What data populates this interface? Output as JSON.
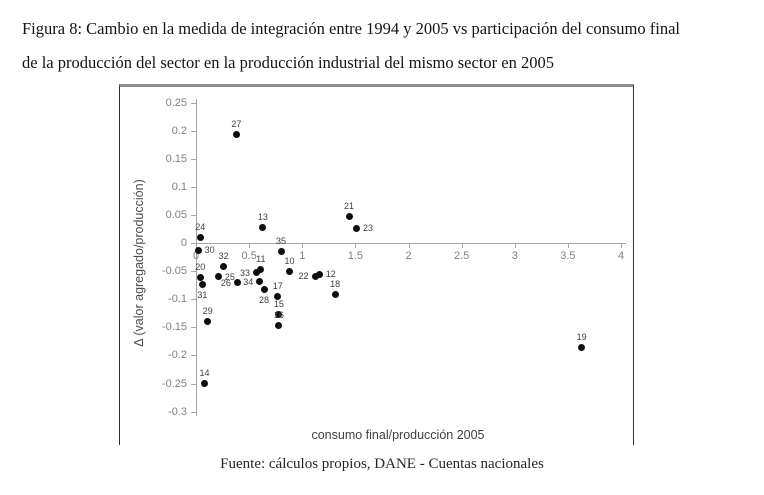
{
  "figure": {
    "caption_line1": "Figura 8: Cambio en la medida de integración entre 1994 y 2005 vs participación del consumo final",
    "caption_line2": "de la producción del sector en la producción industrial del mismo sector en 2005",
    "source": "Fuente: cálculos propios, DANE - Cuentas nacionales"
  },
  "colors": {
    "point": "#0d0d0d",
    "axis": "#a6a6a6",
    "tick_label": "#808080",
    "point_label": "#404040",
    "chart_top_border": "#8c8c8c",
    "chart_side_border": "#2e2e2e"
  },
  "chart_data": {
    "type": "scatter",
    "title": "",
    "xlabel": "consumo final/producción 2005",
    "ylabel": "Δ (valor agregado/producción)",
    "xlim": [
      0,
      4
    ],
    "ylim": [
      -0.3,
      0.25
    ],
    "x_ticks": [
      "0",
      "0.5",
      "1",
      "1.5",
      "2",
      "2.5",
      "3",
      "3.5",
      "4"
    ],
    "y_ticks": [
      "0.25",
      "0.2",
      "0.15",
      "0.1",
      "0.05",
      "0",
      "-0.05",
      "-0.1",
      "-0.15",
      "-0.2",
      "-0.25",
      "-0.3"
    ],
    "grid": false,
    "legend": false,
    "points": [
      {
        "label": "10",
        "x": 0.88,
        "y": -0.05,
        "label_pos": "above"
      },
      {
        "label": "11",
        "x": 0.61,
        "y": -0.048,
        "label_pos": "above"
      },
      {
        "label": "12",
        "x": 1.16,
        "y": -0.056,
        "label_pos": "right"
      },
      {
        "label": "13",
        "x": 0.63,
        "y": 0.028,
        "label_pos": "above"
      },
      {
        "label": "14",
        "x": 0.08,
        "y": -0.25,
        "label_pos": "above"
      },
      {
        "label": "15",
        "x": 0.78,
        "y": -0.127,
        "label_pos": "above"
      },
      {
        "label": "16",
        "x": 0.78,
        "y": -0.147,
        "label_pos": "above"
      },
      {
        "label": "17",
        "x": 0.77,
        "y": -0.096,
        "label_pos": "above"
      },
      {
        "label": "18",
        "x": 1.31,
        "y": -0.091,
        "label_pos": "above"
      },
      {
        "label": "19",
        "x": 3.63,
        "y": -0.186,
        "label_pos": "above"
      },
      {
        "label": "20",
        "x": 0.04,
        "y": -0.062,
        "label_pos": "above"
      },
      {
        "label": "21",
        "x": 1.44,
        "y": 0.047,
        "label_pos": "above"
      },
      {
        "label": "22",
        "x": 1.12,
        "y": -0.059,
        "label_pos": "left"
      },
      {
        "label": "23",
        "x": 1.51,
        "y": 0.026,
        "label_pos": "right"
      },
      {
        "label": "24",
        "x": 0.04,
        "y": 0.01,
        "label_pos": "above"
      },
      {
        "label": "25",
        "x": 0.21,
        "y": -0.06,
        "label_pos": "right"
      },
      {
        "label": "26",
        "x": 0.39,
        "y": -0.071,
        "label_pos": "left"
      },
      {
        "label": "27",
        "x": 0.38,
        "y": 0.193,
        "label_pos": "above"
      },
      {
        "label": "28",
        "x": 0.64,
        "y": -0.083,
        "label_pos": "below"
      },
      {
        "label": "29",
        "x": 0.11,
        "y": -0.14,
        "label_pos": "above"
      },
      {
        "label": "30",
        "x": 0.02,
        "y": -0.013,
        "label_pos": "right"
      },
      {
        "label": "31",
        "x": 0.06,
        "y": -0.073,
        "label_pos": "below"
      },
      {
        "label": "32",
        "x": 0.26,
        "y": -0.042,
        "label_pos": "above"
      },
      {
        "label": "33",
        "x": 0.57,
        "y": -0.053,
        "label_pos": "left"
      },
      {
        "label": "34",
        "x": 0.6,
        "y": -0.069,
        "label_pos": "left"
      },
      {
        "label": "35",
        "x": 0.8,
        "y": -0.016,
        "label_pos": "above"
      }
    ]
  }
}
